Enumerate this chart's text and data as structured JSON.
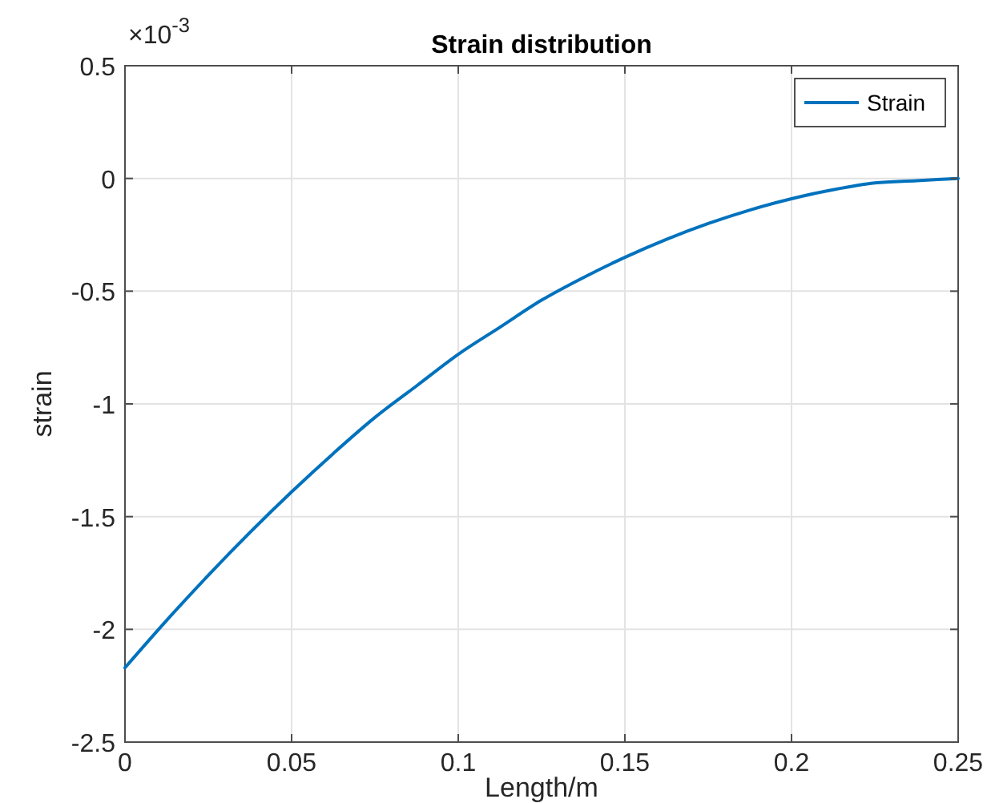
{
  "chart_data": {
    "type": "line",
    "title": "Strain distribution",
    "xlabel": "Length/m",
    "ylabel": "strain",
    "annotations": [
      "×10$^{-3}$"
    ],
    "x": [
      0,
      0.0125,
      0.025,
      0.0375,
      0.05,
      0.0625,
      0.075,
      0.0875,
      0.1,
      0.1125,
      0.125,
      0.1375,
      0.15,
      0.1625,
      0.175,
      0.1875,
      0.2,
      0.2125,
      0.225,
      0.2375,
      0.25
    ],
    "series": [
      {
        "name": "Strain",
        "color": "#0072bd",
        "values": [
          -2.17,
          -1.96,
          -1.76,
          -1.57,
          -1.39,
          -1.22,
          -1.06,
          -0.92,
          -0.78,
          -0.66,
          -0.54,
          -0.44,
          -0.35,
          -0.27,
          -0.2,
          -0.14,
          -0.09,
          -0.05,
          -0.02,
          -0.01,
          0
        ]
      }
    ],
    "xlim": [
      0,
      0.25
    ],
    "xticks": [
      0,
      0.05,
      0.1,
      0.15,
      0.2,
      0.25
    ],
    "ylim": [
      -2.5,
      0.5
    ],
    "yticks": [
      -2.5,
      -2,
      -1.5,
      -1,
      -0.5,
      0,
      0.5
    ],
    "grid": true,
    "legend": "top right",
    "marker": "none",
    "line_style": "solid"
  }
}
